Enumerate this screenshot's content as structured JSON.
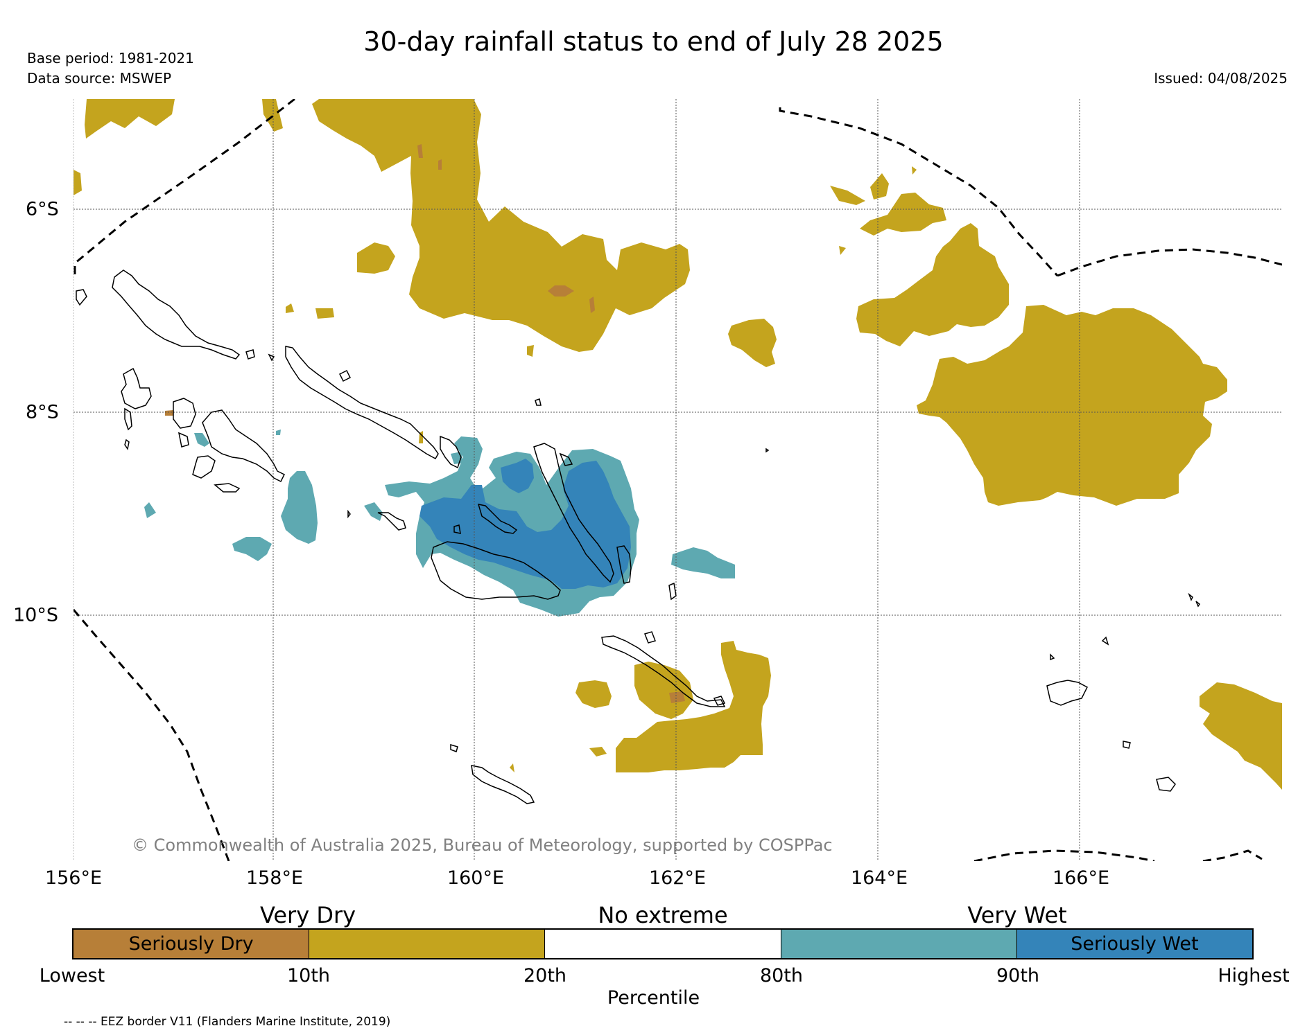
{
  "title": "30-day rainfall status to end of July 28 2025",
  "base_period": "Base period: 1981-2021",
  "data_source": "Data source: MSWEP",
  "issued": "Issued: 04/08/2025",
  "copyright": "© Commonwealth of Australia 2025, Bureau of Meteorology, supported by COSPPac",
  "longitude_labels": [
    "156°E",
    "158°E",
    "160°E",
    "162°E",
    "164°E",
    "166°E"
  ],
  "latitude_labels": [
    "6°S",
    "8°S",
    "10°S"
  ],
  "legend": {
    "category_labels": [
      "Very Dry",
      "No extreme",
      "Very Wet"
    ],
    "segments": [
      {
        "label": "Seriously Dry",
        "color": "#b77f38"
      },
      {
        "label": "",
        "color": "#c4a41e"
      },
      {
        "label": "",
        "color": "#ffffff"
      },
      {
        "label": "",
        "color": "#5ea9b1"
      },
      {
        "label": "Seriously Wet",
        "color": "#3484b9"
      }
    ],
    "percentile_labels": [
      "Lowest",
      "10th",
      "20th",
      "80th",
      "90th",
      "Highest"
    ],
    "axis_title": "Percentile"
  },
  "eez_note": "-- -- -- EEZ border V11 (Flanders Marine Institute, 2019)",
  "colors": {
    "seriously_dry": "#b77f38",
    "very_dry": "#c4a41e",
    "very_wet": "#5ea9b1",
    "seriously_wet": "#3484b9"
  }
}
